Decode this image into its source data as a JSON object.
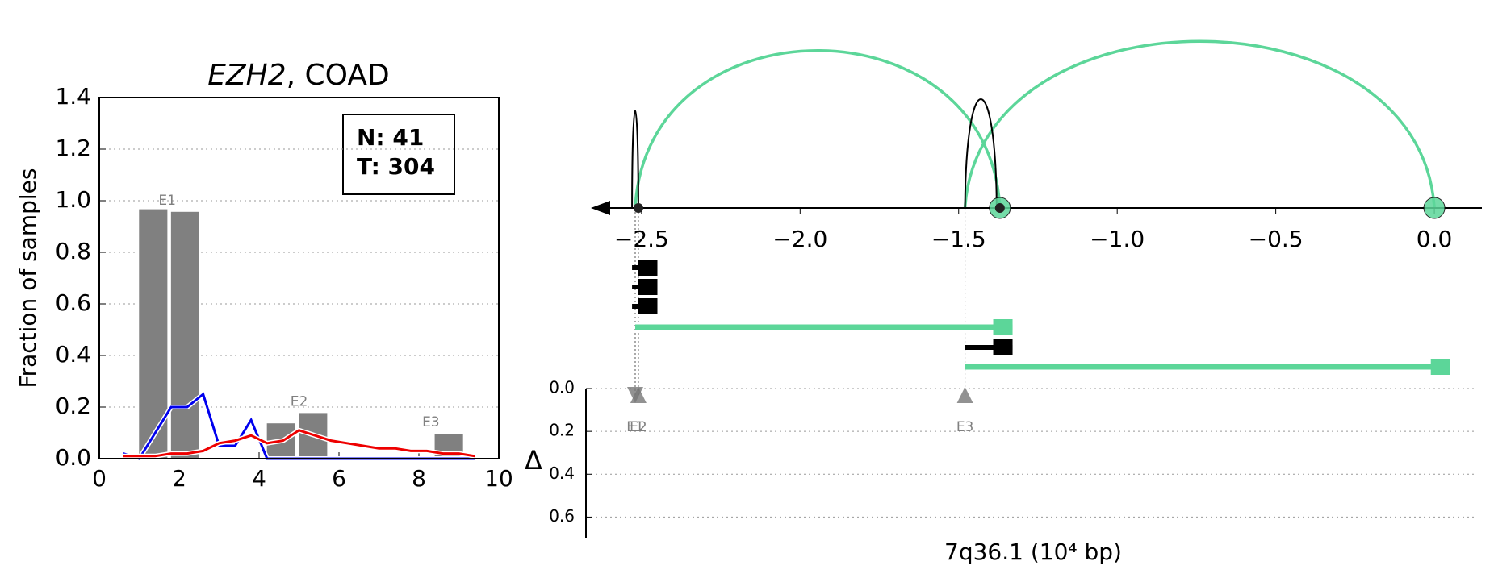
{
  "chart_data": [
    {
      "type": "bar",
      "title": [
        "EZH2",
        ", COAD"
      ],
      "ylabel": "Fraction of samples",
      "xlim": [
        0,
        10
      ],
      "xticks": [
        0,
        2,
        4,
        6,
        8,
        10
      ],
      "ylim": [
        0,
        1.4
      ],
      "yticks": [
        {
          "value": 0,
          "label": "0.0"
        },
        0.2,
        0.4,
        0.6,
        0.8,
        {
          "value": 1,
          "label": "1.0"
        },
        1.2,
        1.4
      ],
      "grid": true,
      "bar_color": "#808080",
      "bar_x": [
        1.35,
        2.15,
        4.55,
        5.35,
        8.75
      ],
      "bar_values": [
        0.97,
        0.96,
        0.14,
        0.18,
        0.1
      ],
      "annotations": [
        {
          "text": "E1",
          "x": 1.7,
          "y": 1.0
        },
        {
          "text": "E2",
          "x": 5.0,
          "y": 0.22
        },
        {
          "text": "E3",
          "x": 8.3,
          "y": 0.14
        }
      ],
      "legend_box": [
        "N: 41",
        "T: 304"
      ],
      "x": [
        0.6,
        1.0,
        1.4,
        1.8,
        2.2,
        2.6,
        3.0,
        3.4,
        3.8,
        4.2,
        4.6,
        5.0,
        5.4,
        5.8,
        6.2,
        6.6,
        7.0,
        7.4,
        7.8,
        8.2,
        8.6,
        9.0,
        9.4
      ],
      "series": [
        {
          "color": "#0000ee",
          "values": [
            0.02,
            0,
            0.1,
            0.2,
            0.2,
            0.25,
            0.05,
            0.05,
            0.15,
            0,
            0,
            0,
            0,
            0,
            0,
            0,
            0,
            0,
            0,
            0,
            0,
            0,
            0
          ]
        },
        {
          "color": "#ee0000",
          "values": [
            0.01,
            0.01,
            0.01,
            0.02,
            0.02,
            0.03,
            0.06,
            0.07,
            0.09,
            0.06,
            0.07,
            0.11,
            0.09,
            0.07,
            0.06,
            0.05,
            0.04,
            0.04,
            0.03,
            0.03,
            0.02,
            0.02,
            0.01
          ]
        }
      ]
    },
    {
      "type": "arc",
      "xlabel": "7q36.1 (10⁴ bp)",
      "xlim": [
        -2.66,
        0.15
      ],
      "xticks": [
        {
          "value": -2.5,
          "label": "−2.5"
        },
        {
          "value": -2,
          "label": "−2.0"
        },
        {
          "value": -1.5,
          "label": "−1.5"
        },
        {
          "value": -1,
          "label": "−1.0"
        },
        {
          "value": -0.5,
          "label": "−0.5"
        },
        {
          "value": 0,
          "label": "0.0"
        }
      ],
      "arcs": [
        {
          "start": -2.52,
          "end": -1.37,
          "color": "#5cd699"
        },
        {
          "start": -1.48,
          "end": 0.0,
          "color": "#5cd699"
        },
        {
          "start": -2.53,
          "end": -2.51,
          "color": "#000000"
        },
        {
          "start": -1.48,
          "end": -1.38,
          "color": "#000000"
        }
      ],
      "junctions": [
        {
          "x": -2.51,
          "color": "#000000"
        },
        {
          "x": -1.37,
          "color": "#5cd699"
        },
        {
          "x": 0.0,
          "color": "#5cd699"
        }
      ],
      "transcripts": [
        {
          "start": -2.53,
          "end": -2.45,
          "color": "#000000"
        },
        {
          "start": -2.53,
          "end": -2.45,
          "color": "#000000"
        },
        {
          "start": -2.53,
          "end": -2.45,
          "color": "#000000"
        },
        {
          "start": -2.52,
          "end": -1.33,
          "color": "#5cd699"
        },
        {
          "start": -1.48,
          "end": -1.33,
          "color": "#000000"
        },
        {
          "start": -1.48,
          "end": 0.05,
          "color": "#5cd699"
        }
      ],
      "ylabel": "Δ",
      "ylim": [
        0,
        0.7
      ],
      "yticks": [
        {
          "value": 0,
          "label": "0.0"
        },
        0.2,
        0.4,
        0.6
      ],
      "exons": [
        {
          "name": "E1",
          "x": -2.52,
          "delta": 0.03,
          "marker": "down"
        },
        {
          "name": "E2",
          "x": -2.51,
          "delta": 0.03,
          "marker": "up"
        },
        {
          "name": "E3",
          "x": -1.48,
          "delta": 0.03,
          "marker": "up"
        }
      ]
    }
  ]
}
